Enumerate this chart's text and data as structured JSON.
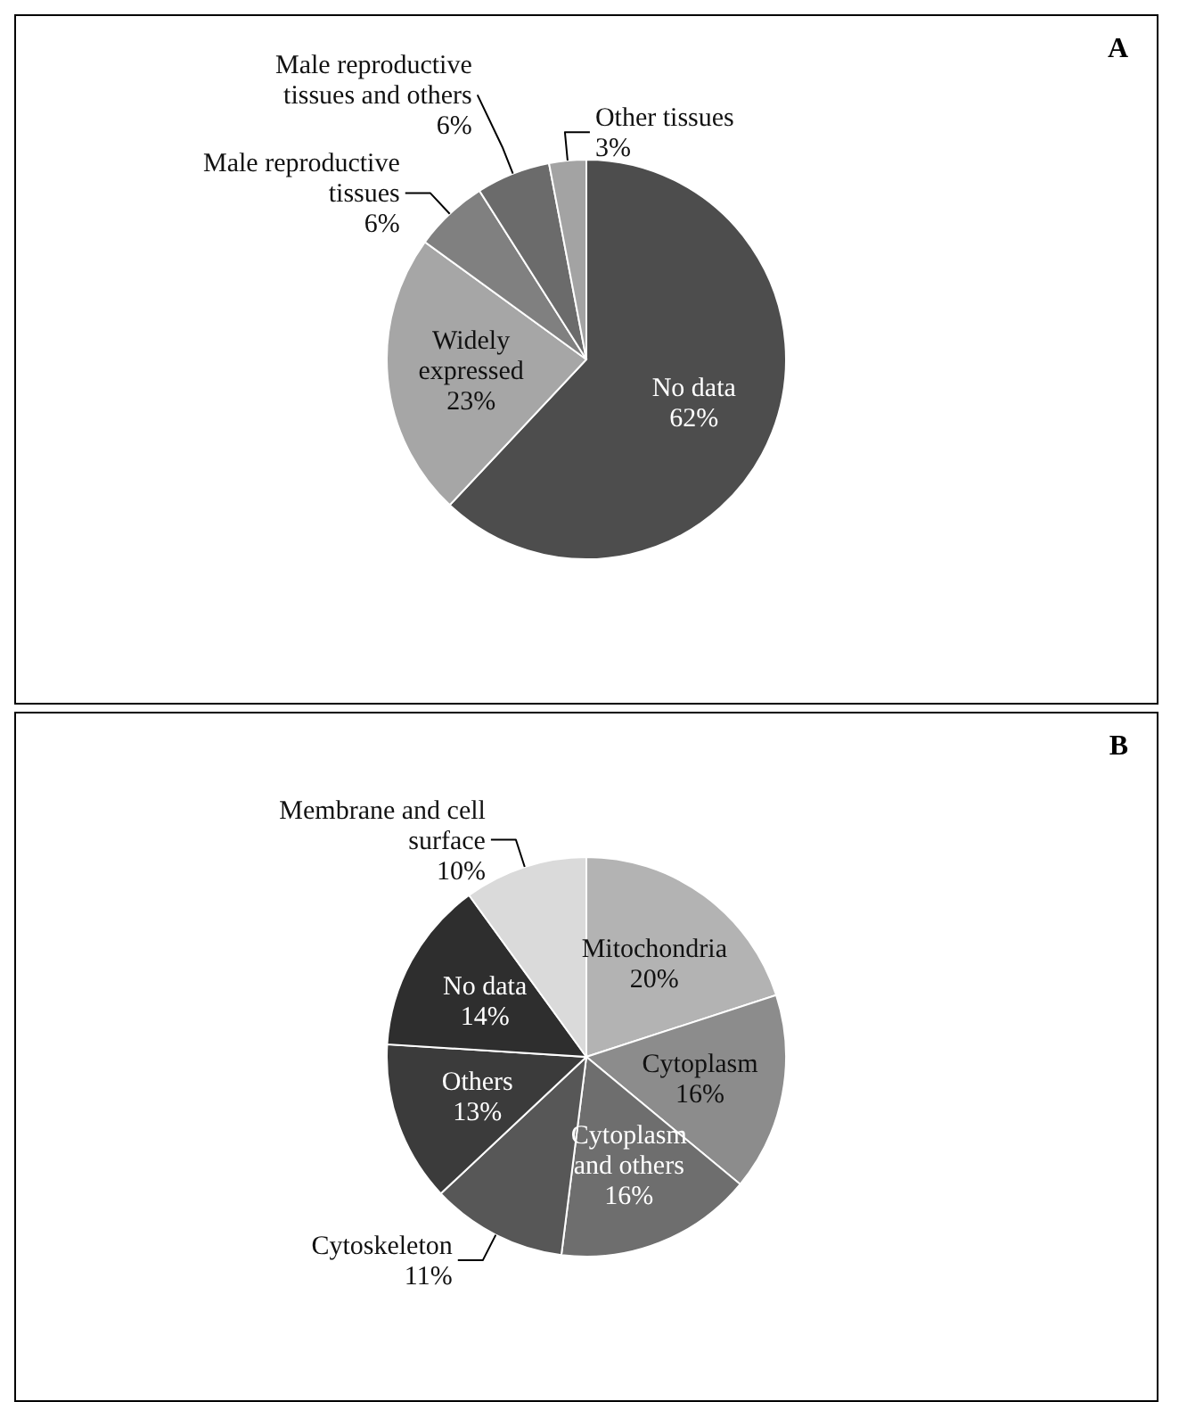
{
  "chart_data": [
    {
      "type": "pie",
      "title": "A",
      "categories": [
        "No data",
        "Widely expressed",
        "Male reproductive tissues",
        "Male reproductive tissues and others",
        "Other tissues"
      ],
      "values": [
        62,
        23,
        6,
        6,
        3
      ],
      "colors": [
        "#4d4d4d",
        "#a6a6a6",
        "#808080",
        "#6b6b6b",
        "#a3a3a3"
      ],
      "value_labels": [
        "62%",
        "23%",
        "6%",
        "6%",
        "3%"
      ],
      "legend": false
    },
    {
      "type": "pie",
      "title": "B",
      "categories": [
        "Mitochondria",
        "Cytoplasm",
        "Cytoplasm and others",
        "Cytoskeleton",
        "Others",
        "No data",
        "Membrane and cell surface"
      ],
      "values": [
        20,
        16,
        16,
        11,
        13,
        14,
        10
      ],
      "colors": [
        "#b3b3b3",
        "#8c8c8c",
        "#6e6e6e",
        "#575757",
        "#3b3b3b",
        "#2e2e2e",
        "#dadada"
      ],
      "value_labels": [
        "20%",
        "16%",
        "16%",
        "11%",
        "13%",
        "14%",
        "10%"
      ],
      "legend": false
    }
  ]
}
